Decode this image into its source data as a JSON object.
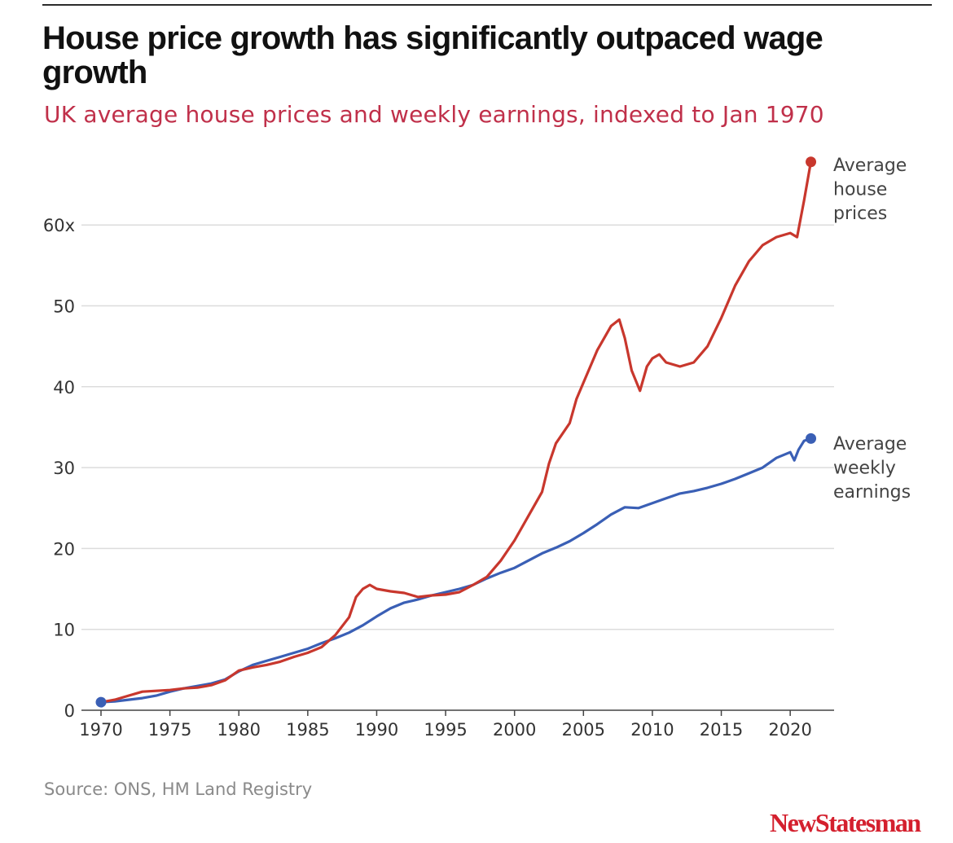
{
  "title": "House price growth has significantly outpaced wage growth",
  "subtitle": "UK average house prices and weekly earnings, indexed to Jan 1970",
  "source": "Source: ONS, HM Land Registry",
  "brand": "NewStatesman",
  "colors": {
    "house": "#c8372d",
    "earnings": "#3a5fb5",
    "grid": "#dcdcdc",
    "axis": "#444444"
  },
  "chart_data": {
    "type": "line",
    "title": "House price growth has significantly outpaced wage growth",
    "subtitle": "UK average house prices and weekly earnings, indexed to Jan 1970",
    "xlabel": "",
    "ylabel": "",
    "xlim": [
      1970,
      2022
    ],
    "ylim": [
      0,
      68
    ],
    "x_ticks": [
      1970,
      1975,
      1980,
      1985,
      1990,
      1995,
      2000,
      2005,
      2010,
      2015,
      2020
    ],
    "y_ticks": [
      0,
      10,
      20,
      30,
      40,
      50,
      60
    ],
    "y_tick_labels": [
      "0",
      "10",
      "20",
      "30",
      "40",
      "50",
      "60x"
    ],
    "grid": "horizontal",
    "series": [
      {
        "name": "Average house prices",
        "label_lines": [
          "Average",
          "house",
          "prices"
        ],
        "color": "#c8372d",
        "x": [
          1970,
          1971,
          1972,
          1973,
          1974,
          1975,
          1976,
          1977,
          1978,
          1979,
          1980,
          1981,
          1982,
          1983,
          1984,
          1985,
          1986,
          1987,
          1988,
          1988.5,
          1989,
          1989.5,
          1990,
          1991,
          1992,
          1993,
          1994,
          1995,
          1996,
          1997,
          1998,
          1999,
          2000,
          2001,
          2002,
          2002.5,
          2003,
          2004,
          2004.5,
          2005,
          2006,
          2007,
          2007.6,
          2008,
          2008.5,
          2009.1,
          2009.6,
          2010,
          2010.5,
          2011,
          2012,
          2013,
          2014,
          2015,
          2016,
          2017,
          2018,
          2019,
          2020,
          2020.5,
          2021,
          2021.5
        ],
        "values": [
          1.0,
          1.3,
          1.8,
          2.3,
          2.4,
          2.5,
          2.7,
          2.8,
          3.1,
          3.7,
          4.9,
          5.3,
          5.6,
          6.0,
          6.6,
          7.1,
          7.8,
          9.3,
          11.5,
          14.0,
          15.0,
          15.5,
          15.0,
          14.7,
          14.5,
          14.0,
          14.2,
          14.3,
          14.6,
          15.5,
          16.5,
          18.5,
          21.0,
          24.0,
          27.0,
          30.5,
          33.0,
          35.5,
          38.5,
          40.5,
          44.5,
          47.5,
          48.3,
          46.0,
          42.0,
          39.5,
          42.5,
          43.5,
          44.0,
          43.0,
          42.5,
          43.0,
          45.0,
          48.5,
          52.5,
          55.5,
          57.5,
          58.5,
          59.0,
          58.5,
          63.0,
          67.8
        ]
      },
      {
        "name": "Average weekly earnings",
        "label_lines": [
          "Average",
          "weekly",
          "earnings"
        ],
        "color": "#3a5fb5",
        "x": [
          1970,
          1971,
          1972,
          1973,
          1974,
          1975,
          1976,
          1977,
          1978,
          1979,
          1980,
          1981,
          1982,
          1983,
          1984,
          1985,
          1986,
          1987,
          1988,
          1989,
          1990,
          1991,
          1992,
          1993,
          1994,
          1995,
          1996,
          1997,
          1998,
          1999,
          2000,
          2001,
          2002,
          2003,
          2004,
          2005,
          2006,
          2007,
          2008,
          2009,
          2010,
          2011,
          2012,
          2013,
          2014,
          2015,
          2016,
          2017,
          2018,
          2019,
          2020,
          2020.3,
          2020.6,
          2021,
          2021.5
        ],
        "values": [
          1.0,
          1.1,
          1.3,
          1.5,
          1.8,
          2.3,
          2.7,
          3.0,
          3.3,
          3.8,
          4.8,
          5.6,
          6.1,
          6.6,
          7.1,
          7.6,
          8.3,
          8.9,
          9.6,
          10.5,
          11.6,
          12.6,
          13.3,
          13.7,
          14.2,
          14.6,
          15.0,
          15.5,
          16.3,
          17.0,
          17.6,
          18.5,
          19.4,
          20.1,
          20.9,
          21.9,
          23.0,
          24.2,
          25.1,
          25.0,
          25.6,
          26.2,
          26.8,
          27.1,
          27.5,
          28.0,
          28.6,
          29.3,
          30.0,
          31.2,
          31.9,
          30.9,
          32.2,
          33.3,
          33.6
        ]
      }
    ]
  }
}
